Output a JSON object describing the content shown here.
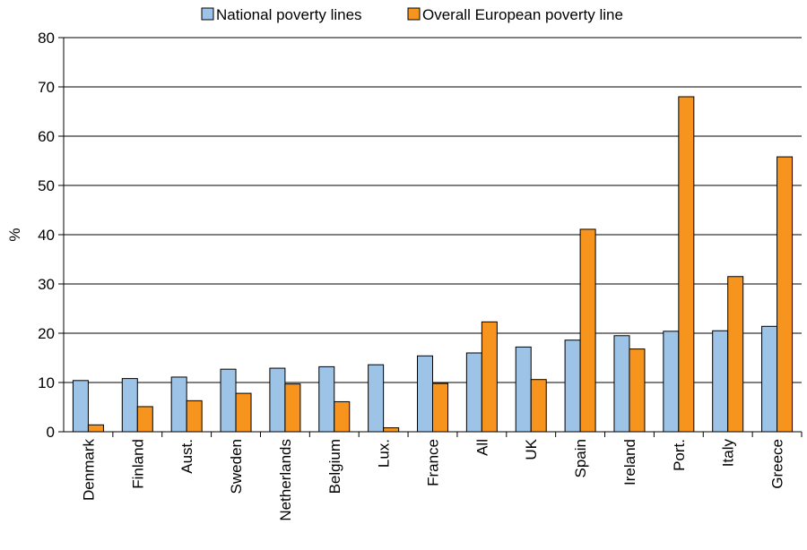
{
  "chart_data": {
    "type": "bar",
    "title": "",
    "xlabel": "",
    "ylabel": "%",
    "ylim": [
      0,
      80
    ],
    "yticks": [
      0,
      10,
      20,
      30,
      40,
      50,
      60,
      70,
      80
    ],
    "grid": true,
    "legend_position": "top",
    "categories": [
      "Denmark",
      "Finland",
      "Aust.",
      "Sweden",
      "Netherlands",
      "Belgium",
      "Lux.",
      "France",
      "All",
      "UK",
      "Spain",
      "Ireland",
      "Port.",
      "Italy",
      "Greece"
    ],
    "series": [
      {
        "name": "National poverty lines",
        "color": "#9dc3e6",
        "values": [
          10.4,
          10.8,
          11.1,
          12.7,
          12.9,
          13.2,
          13.6,
          15.4,
          16.0,
          17.2,
          18.6,
          19.5,
          20.4,
          20.5,
          21.4
        ]
      },
      {
        "name": "Overall European poverty line",
        "color": "#f7941d",
        "values": [
          1.4,
          5.1,
          6.3,
          7.8,
          9.7,
          6.1,
          0.8,
          9.8,
          22.3,
          10.6,
          41.1,
          16.8,
          68.0,
          31.5,
          55.8
        ]
      }
    ]
  }
}
